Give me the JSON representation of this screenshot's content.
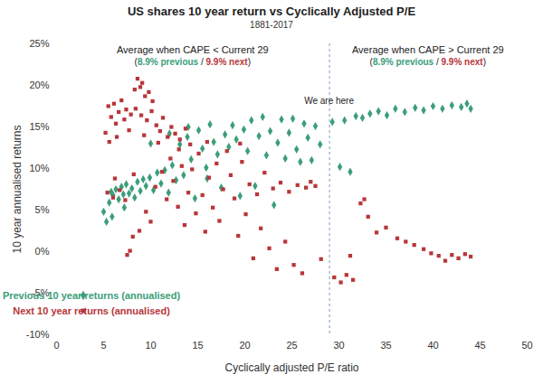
{
  "chart_data": {
    "type": "scatter",
    "title": "US shares 10 year return vs Cyclically Adjusted P/E",
    "subtitle": "1881-2017",
    "x_label": "Cyclically adjusted P/E ratio",
    "y_label": "10 year annualised returns",
    "xlim": [
      0,
      50
    ],
    "xticks": [
      0,
      5,
      10,
      15,
      20,
      25,
      30,
      35,
      40,
      45,
      50
    ],
    "ylim": [
      -10,
      25
    ],
    "yticks": [
      {
        "value": -10,
        "label": "-10%"
      },
      {
        "value": -5,
        "label": "-5%"
      },
      {
        "value": 0,
        "label": "0%"
      },
      {
        "value": 5,
        "label": "5%"
      },
      {
        "value": 10,
        "label": "10%"
      },
      {
        "value": 15,
        "label": "15%"
      },
      {
        "value": 20,
        "label": "20%"
      },
      {
        "value": 25,
        "label": "25%"
      }
    ],
    "grid": false,
    "legend": "lower left",
    "reference_line": {
      "x": 29,
      "label": "We are here",
      "line_style": "dashed",
      "color": "#7d9ac8"
    },
    "annotations": [
      {
        "text": "Average when CAPE < Current 29",
        "detail": [
          {
            "text": "("
          },
          {
            "text": "8.9% previous",
            "color": "#3b9e79"
          },
          {
            "text": " / "
          },
          {
            "text": "9.9% next",
            "color": "#b8363a"
          },
          {
            "text": ")"
          }
        ]
      },
      {
        "text": "Average when CAPE > Current 29",
        "detail": [
          {
            "text": "("
          },
          {
            "text": "8.9% previous",
            "color": "#3b9e79"
          },
          {
            "text": " / "
          },
          {
            "text": "9.9% next",
            "color": "#b8363a"
          },
          {
            "text": ")"
          }
        ]
      }
    ],
    "series": [
      {
        "name": "Previous 10 year returns (annualised)",
        "color": "#3b9e79",
        "marker": "diamond",
        "x": [
          5.0,
          5.3,
          5.6,
          5.8,
          6.0,
          6.3,
          6.6,
          6.9,
          7.1,
          7.4,
          7.7,
          8.0,
          8.3,
          8.6,
          8.9,
          9.2,
          9.5,
          9.9,
          10.3,
          10.7,
          11.1,
          5.9,
          7.2,
          11.5,
          11.9,
          12.3,
          12.7,
          13.1,
          13.5,
          13.9,
          14.3,
          14.7,
          15.1,
          15.5,
          15.9,
          16.3,
          16.7,
          17.1,
          17.5,
          17.9,
          18.3,
          12.0,
          14.0,
          16.0,
          10.0,
          18.7,
          19.1,
          19.5,
          19.9,
          20.3,
          20.7,
          21.1,
          21.5,
          21.9,
          22.3,
          22.7,
          23.1,
          23.5,
          23.9,
          24.3,
          24.7,
          25.1,
          25.5,
          25.9,
          26.3,
          26.7,
          27.1,
          27.5,
          28.0,
          29.3,
          30.1,
          30.6,
          31.2,
          31.8,
          32.5,
          33.3,
          34.2,
          35.1,
          36.0,
          37.0,
          38.1,
          39.0,
          40.0,
          41.0,
          42.0,
          43.0,
          43.6,
          44.0
        ],
        "values": [
          4.8,
          3.6,
          5.9,
          7.2,
          6.8,
          7.5,
          6.3,
          7.8,
          6.9,
          8.1,
          7.0,
          7.6,
          6.5,
          8.4,
          7.3,
          8.7,
          7.9,
          8.9,
          7.4,
          9.5,
          8.2,
          4.2,
          5.3,
          9.8,
          7.1,
          10.4,
          8.6,
          12.9,
          9.2,
          13.8,
          11.1,
          6.4,
          14.6,
          12.4,
          10.1,
          15.3,
          13.2,
          11.7,
          7.7,
          14.1,
          12.6,
          14.2,
          15.0,
          8.8,
          13.0,
          15.2,
          13.5,
          6.7,
          14.7,
          12.1,
          15.8,
          7.9,
          13.9,
          16.2,
          11.6,
          14.5,
          5.6,
          13.1,
          15.9,
          11.2,
          14.3,
          16.0,
          12.3,
          10.8,
          15.4,
          13.7,
          11.0,
          15.1,
          12.9,
          15.6,
          10.2,
          15.8,
          9.6,
          16.3,
          16.1,
          16.6,
          16.9,
          16.4,
          17.2,
          16.8,
          17.3,
          17.0,
          17.5,
          17.2,
          17.6,
          17.4,
          17.8,
          17.2
        ]
      },
      {
        "name": "Next 10 year returns (annualised)",
        "color": "#b8363a",
        "marker": "square",
        "x": [
          5.2,
          5.5,
          5.8,
          6.1,
          6.3,
          6.6,
          6.9,
          7.2,
          7.4,
          7.7,
          7.9,
          5.6,
          6.4,
          8.3,
          8.6,
          8.9,
          9.1,
          9.4,
          9.8,
          10.2,
          8.4,
          9.0,
          9.6,
          10.1,
          10.6,
          11.0,
          11.3,
          11.8,
          12.2,
          12.6,
          13.1,
          13.7,
          14.2,
          10.8,
          9.3,
          5.4,
          6.0,
          6.7,
          7.3,
          7.8,
          8.1,
          8.8,
          7.5,
          9.5,
          10.0,
          6.2,
          8.2,
          10.5,
          11.2,
          11.7,
          12.1,
          12.4,
          12.9,
          13.3,
          13.6,
          14.0,
          14.4,
          14.8,
          15.1,
          15.5,
          15.8,
          16.2,
          16.6,
          17.0,
          17.3,
          17.7,
          18.1,
          18.5,
          13.0,
          16.0,
          18.9,
          19.3,
          19.7,
          20.1,
          20.5,
          20.9,
          21.3,
          21.7,
          22.1,
          22.6,
          23.0,
          23.4,
          23.8,
          24.3,
          24.7,
          25.2,
          25.6,
          26.1,
          26.5,
          27.0,
          27.5,
          28.1,
          19.5,
          29.5,
          30.2,
          30.8,
          31.5,
          32.3,
          32.7,
          33.1,
          31.2,
          34.0,
          35.0,
          36.2,
          37.1,
          38.0,
          39.0,
          39.8,
          40.6,
          41.3,
          42.0,
          42.7,
          43.4,
          44.0
        ],
        "values": [
          14.3,
          17.5,
          16.2,
          17.8,
          15.4,
          16.8,
          18.2,
          15.9,
          17.1,
          14.6,
          16.5,
          13.2,
          13.8,
          19.5,
          20.8,
          19.8,
          20.3,
          18.7,
          19.2,
          18.1,
          17.2,
          16.4,
          15.8,
          16.9,
          15.2,
          14.5,
          16.1,
          13.8,
          15.0,
          14.2,
          13.5,
          14.8,
          12.9,
          13.1,
          14.0,
          7.1,
          6.5,
          7.4,
          6.2,
          0.1,
          1.8,
          2.5,
          -0.4,
          4.8,
          3.6,
          8.8,
          9.3,
          7.8,
          9.6,
          6.3,
          11.2,
          8.5,
          5.4,
          10.3,
          3.2,
          7.1,
          9.9,
          4.6,
          11.8,
          6.8,
          2.4,
          8.9,
          5.3,
          10.6,
          3.7,
          7.5,
          12.1,
          9.2,
          12.3,
          13.2,
          6.4,
          1.9,
          10.8,
          4.5,
          8.1,
          -0.8,
          6.9,
          2.8,
          9.5,
          0.4,
          7.6,
          -2.1,
          8.3,
          1.2,
          7.2,
          -1.6,
          8.0,
          -2.6,
          7.7,
          8.4,
          7.9,
          -0.9,
          13.0,
          -3.1,
          -3.7,
          -2.8,
          -3.4,
          5.8,
          6.3,
          4.2,
          -0.5,
          2.3,
          2.9,
          1.6,
          1.2,
          0.8,
          0.3,
          -0.2,
          -0.5,
          -1.1,
          -0.4,
          -0.8,
          -0.3,
          -0.6
        ]
      }
    ]
  }
}
